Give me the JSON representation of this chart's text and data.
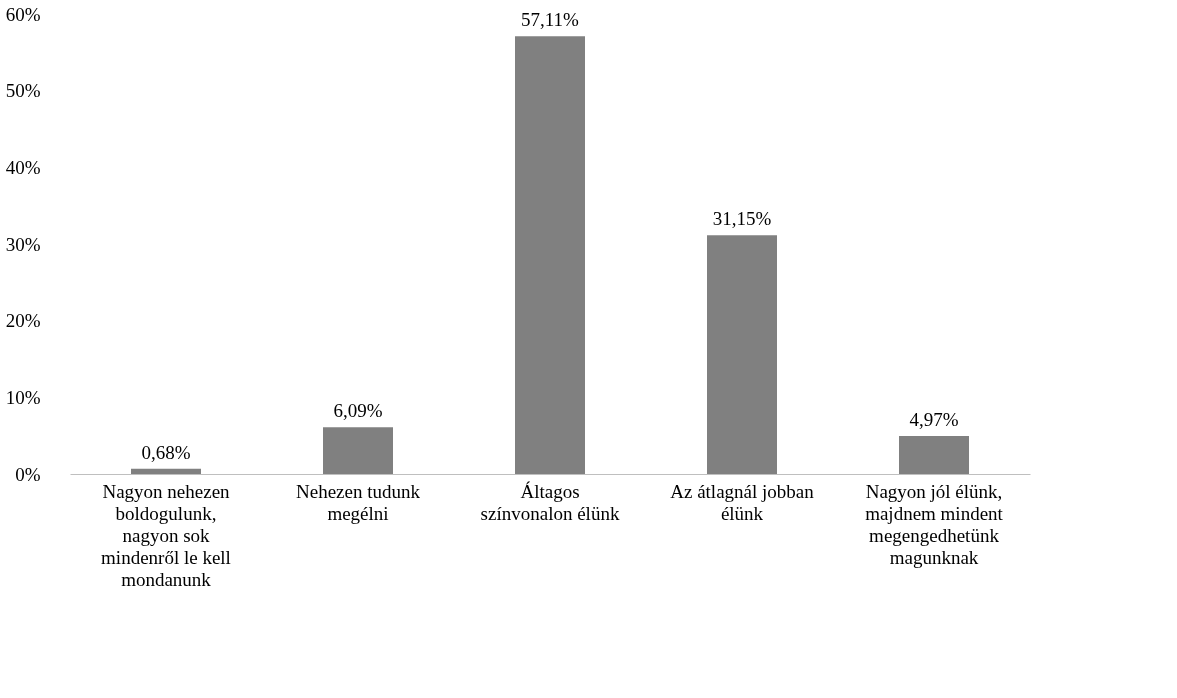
{
  "chart_data": {
    "type": "bar",
    "categories": [
      "Nagyon nehezen boldogulunk, nagyon sok mindenről le kell mondanunk",
      "Nehezen tudunk megélni",
      "Áltagos színvonalon élünk",
      "Az átlagnál jobban élünk",
      "Nagyon jól élünk, majdnem mindent megengedhetünk magunknak"
    ],
    "values": [
      0.68,
      6.09,
      57.11,
      31.15,
      4.97
    ],
    "value_labels": [
      "0,68%",
      "6,09%",
      "57,11%",
      "31,15%",
      "4,97%"
    ],
    "color": "#808080",
    "ylim": [
      0,
      60
    ],
    "yticks": [
      {
        "value": 0,
        "label": "0%"
      },
      {
        "value": 10,
        "label": "10%"
      },
      {
        "value": 20,
        "label": "20%"
      },
      {
        "value": 30,
        "label": "30%"
      },
      {
        "value": 40,
        "label": "40%"
      },
      {
        "value": 50,
        "label": "50%"
      },
      {
        "value": 60,
        "label": "60%"
      }
    ],
    "grid": false
  }
}
